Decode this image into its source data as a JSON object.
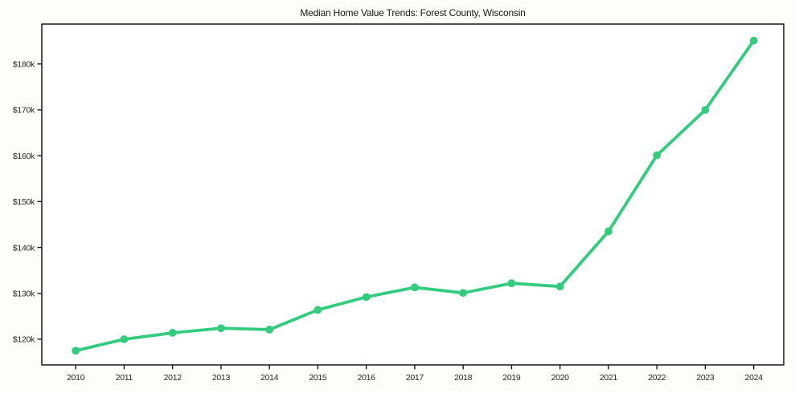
{
  "chart_data": {
    "type": "line",
    "title": "Median Home Value Trends: Forest County, Wisconsin",
    "xlabel": "",
    "ylabel": "",
    "x": [
      2010,
      2011,
      2012,
      2013,
      2014,
      2015,
      2016,
      2017,
      2018,
      2019,
      2020,
      2021,
      2022,
      2023,
      2024
    ],
    "series": [
      {
        "name": "Median Home Value",
        "values": [
          117500,
          120000,
          121400,
          122400,
          122100,
          126400,
          129200,
          131300,
          130100,
          132200,
          131500,
          143500,
          160100,
          170000,
          185100
        ]
      }
    ],
    "x_ticks": [
      {
        "value": 2010,
        "label": "2010"
      },
      {
        "value": 2011,
        "label": "2011"
      },
      {
        "value": 2012,
        "label": "2012"
      },
      {
        "value": 2013,
        "label": "2013"
      },
      {
        "value": 2014,
        "label": "2014"
      },
      {
        "value": 2015,
        "label": "2015"
      },
      {
        "value": 2016,
        "label": "2016"
      },
      {
        "value": 2017,
        "label": "2017"
      },
      {
        "value": 2018,
        "label": "2018"
      },
      {
        "value": 2019,
        "label": "2019"
      },
      {
        "value": 2020,
        "label": "2020"
      },
      {
        "value": 2021,
        "label": "2021"
      },
      {
        "value": 2022,
        "label": "2022"
      },
      {
        "value": 2023,
        "label": "2023"
      },
      {
        "value": 2024,
        "label": "2024"
      }
    ],
    "y_ticks": [
      {
        "value": 120000,
        "label": "$120k"
      },
      {
        "value": 130000,
        "label": "$130k"
      },
      {
        "value": 140000,
        "label": "$140k"
      },
      {
        "value": 150000,
        "label": "$150k"
      },
      {
        "value": 160000,
        "label": "$160k"
      },
      {
        "value": 170000,
        "label": "$170k"
      },
      {
        "value": 180000,
        "label": "$180k"
      }
    ],
    "xlim": [
      2009.3,
      2024.62
    ],
    "ylim": [
      114400,
      188700
    ],
    "grid": false,
    "legend": "none",
    "line_color": "#33cc7e",
    "marker": "circle",
    "plot_bg": "#ffffff",
    "frame_color": "#1a1a1a"
  }
}
